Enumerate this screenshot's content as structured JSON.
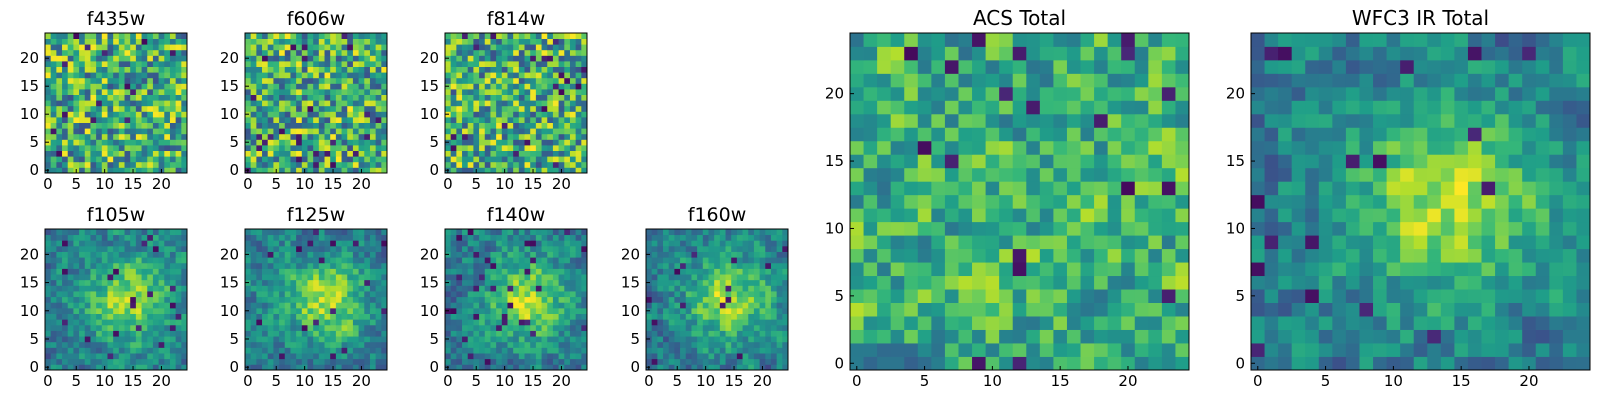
{
  "chart_data": [
    {
      "type": "heatmap",
      "title": "f435w",
      "colormap": "viridis",
      "rows": 25,
      "cols": 25,
      "xlim": [
        0,
        24
      ],
      "ylim": [
        0,
        24
      ],
      "xticks": [
        0,
        5,
        10,
        15,
        20
      ],
      "yticks": [
        0,
        5,
        10,
        15,
        20
      ],
      "pattern": "noise",
      "seed": 11
    },
    {
      "type": "heatmap",
      "title": "f606w",
      "colormap": "viridis",
      "rows": 25,
      "cols": 25,
      "xlim": [
        0,
        24
      ],
      "ylim": [
        0,
        24
      ],
      "xticks": [
        0,
        5,
        10,
        15,
        20
      ],
      "yticks": [
        0,
        5,
        10,
        15,
        20
      ],
      "pattern": "noise",
      "seed": 23
    },
    {
      "type": "heatmap",
      "title": "f814w",
      "colormap": "viridis",
      "rows": 25,
      "cols": 25,
      "xlim": [
        0,
        24
      ],
      "ylim": [
        0,
        24
      ],
      "xticks": [
        0,
        5,
        10,
        15,
        20
      ],
      "yticks": [
        0,
        5,
        10,
        15,
        20
      ],
      "pattern": "noise",
      "seed": 37
    },
    {
      "type": "heatmap",
      "title": "f105w",
      "colormap": "viridis",
      "rows": 25,
      "cols": 25,
      "xlim": [
        0,
        24
      ],
      "ylim": [
        0,
        24
      ],
      "xticks": [
        0,
        5,
        10,
        15,
        20
      ],
      "yticks": [
        0,
        5,
        10,
        15,
        20
      ],
      "pattern": "blob",
      "seed": 41
    },
    {
      "type": "heatmap",
      "title": "f125w",
      "colormap": "viridis",
      "rows": 25,
      "cols": 25,
      "xlim": [
        0,
        24
      ],
      "ylim": [
        0,
        24
      ],
      "xticks": [
        0,
        5,
        10,
        15,
        20
      ],
      "yticks": [
        0,
        5,
        10,
        15,
        20
      ],
      "pattern": "blob",
      "seed": 53
    },
    {
      "type": "heatmap",
      "title": "f140w",
      "colormap": "viridis",
      "rows": 25,
      "cols": 25,
      "xlim": [
        0,
        24
      ],
      "ylim": [
        0,
        24
      ],
      "xticks": [
        0,
        5,
        10,
        15,
        20
      ],
      "yticks": [
        0,
        5,
        10,
        15,
        20
      ],
      "pattern": "blob",
      "seed": 67
    },
    {
      "type": "heatmap",
      "title": "f160w",
      "colormap": "viridis",
      "rows": 25,
      "cols": 25,
      "xlim": [
        0,
        24
      ],
      "ylim": [
        0,
        24
      ],
      "xticks": [
        0,
        5,
        10,
        15,
        20
      ],
      "yticks": [
        0,
        5,
        10,
        15,
        20
      ],
      "pattern": "blob",
      "seed": 79
    },
    {
      "type": "heatmap",
      "title": "ACS Total",
      "colormap": "viridis",
      "rows": 25,
      "cols": 25,
      "xlim": [
        0,
        24
      ],
      "ylim": [
        0,
        24
      ],
      "xticks": [
        0,
        5,
        10,
        15,
        20
      ],
      "yticks": [
        0,
        5,
        10,
        15,
        20
      ],
      "pattern": "noise-smooth",
      "seed": 97
    },
    {
      "type": "heatmap",
      "title": "WFC3 IR Total",
      "colormap": "viridis",
      "rows": 25,
      "cols": 25,
      "xlim": [
        0,
        24
      ],
      "ylim": [
        0,
        24
      ],
      "xticks": [
        0,
        5,
        10,
        15,
        20
      ],
      "yticks": [
        0,
        5,
        10,
        15,
        20
      ],
      "pattern": "blob-smooth",
      "seed": 113
    }
  ]
}
